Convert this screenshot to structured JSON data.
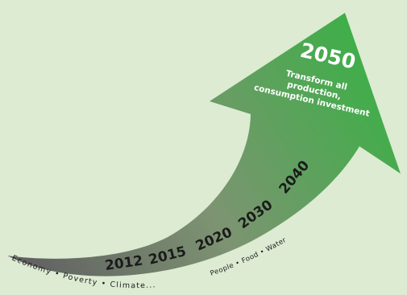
{
  "colors": {
    "background": "#dcebd2",
    "arrow_tail": "#6f6f6f",
    "arrow_mid": "#7a9a6c",
    "arrow_head": "#3daf47"
  },
  "arrow": {
    "head_year": "2050",
    "head_text": [
      "Transform all",
      "production,",
      "consumption investment"
    ]
  },
  "milestones": [
    "2012",
    "2015",
    "2020",
    "2030",
    "2040"
  ],
  "themes_left": "Economy • Poverty • Climate...",
  "themes_right": "People • Food • Water"
}
